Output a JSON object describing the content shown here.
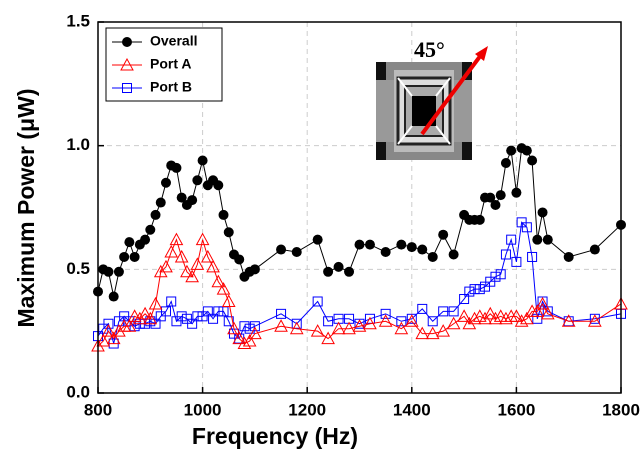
{
  "chart_data": {
    "type": "line",
    "xlabel": "Frequency (Hz)",
    "ylabel": "Maximum Power (μW)",
    "annotation": "45°",
    "x": [
      800,
      810,
      820,
      830,
      840,
      850,
      860,
      870,
      880,
      890,
      900,
      910,
      920,
      930,
      940,
      950,
      960,
      970,
      980,
      990,
      1000,
      1010,
      1020,
      1030,
      1040,
      1050,
      1060,
      1070,
      1080,
      1090,
      1100,
      1150,
      1180,
      1220,
      1240,
      1260,
      1280,
      1300,
      1320,
      1350,
      1380,
      1400,
      1420,
      1440,
      1460,
      1480,
      1500,
      1510,
      1520,
      1530,
      1540,
      1550,
      1560,
      1570,
      1580,
      1590,
      1600,
      1610,
      1620,
      1630,
      1640,
      1650,
      1660,
      1700,
      1750,
      1800
    ],
    "series": [
      {
        "name": "Overall",
        "color": "#000000",
        "marker": "circle",
        "values": [
          0.41,
          0.5,
          0.49,
          0.39,
          0.49,
          0.55,
          0.61,
          0.55,
          0.6,
          0.62,
          0.66,
          0.72,
          0.77,
          0.85,
          0.92,
          0.91,
          0.79,
          0.76,
          0.78,
          0.86,
          0.94,
          0.84,
          0.86,
          0.84,
          0.72,
          0.65,
          0.56,
          0.54,
          0.47,
          0.49,
          0.5,
          0.58,
          0.57,
          0.62,
          0.49,
          0.51,
          0.49,
          0.6,
          0.6,
          0.57,
          0.6,
          0.59,
          0.58,
          0.55,
          0.64,
          0.56,
          0.72,
          0.7,
          0.7,
          0.7,
          0.79,
          0.79,
          0.76,
          0.8,
          0.93,
          0.98,
          0.81,
          0.99,
          0.98,
          0.94,
          0.62,
          0.73,
          0.62,
          0.55,
          0.58,
          0.68
        ]
      },
      {
        "name": "Port A",
        "color": "#ff0000",
        "marker": "triangle",
        "values": [
          0.19,
          0.21,
          0.25,
          0.22,
          0.25,
          0.27,
          0.27,
          0.31,
          0.3,
          0.32,
          0.3,
          0.36,
          0.49,
          0.51,
          0.57,
          0.62,
          0.55,
          0.49,
          0.47,
          0.52,
          0.62,
          0.55,
          0.51,
          0.45,
          0.42,
          0.37,
          0.26,
          0.22,
          0.2,
          0.21,
          0.24,
          0.27,
          0.26,
          0.25,
          0.22,
          0.26,
          0.26,
          0.27,
          0.28,
          0.29,
          0.26,
          0.29,
          0.24,
          0.24,
          0.25,
          0.28,
          0.31,
          0.28,
          0.3,
          0.31,
          0.3,
          0.32,
          0.3,
          0.31,
          0.3,
          0.31,
          0.31,
          0.29,
          0.3,
          0.33,
          0.33,
          0.36,
          0.32,
          0.29,
          0.29,
          0.36
        ]
      },
      {
        "name": "Port B",
        "color": "#0000ff",
        "marker": "square",
        "values": [
          0.23,
          0.26,
          0.28,
          0.2,
          0.29,
          0.31,
          0.29,
          0.27,
          0.28,
          0.28,
          0.29,
          0.28,
          0.31,
          0.33,
          0.37,
          0.29,
          0.31,
          0.3,
          0.28,
          0.31,
          0.31,
          0.33,
          0.3,
          0.33,
          0.33,
          0.29,
          0.24,
          0.22,
          0.27,
          0.26,
          0.27,
          0.32,
          0.28,
          0.37,
          0.29,
          0.3,
          0.3,
          0.28,
          0.3,
          0.32,
          0.29,
          0.3,
          0.34,
          0.29,
          0.33,
          0.33,
          0.38,
          0.41,
          0.42,
          0.42,
          0.43,
          0.45,
          0.47,
          0.48,
          0.56,
          0.62,
          0.53,
          0.69,
          0.67,
          0.55,
          0.3,
          0.37,
          0.33,
          0.29,
          0.3,
          0.32
        ]
      }
    ],
    "xlim": [
      800,
      1800
    ],
    "xticks": [
      800,
      1000,
      1200,
      1400,
      1600,
      1800
    ],
    "ylim": [
      0,
      1.5
    ],
    "yticks": [
      {
        "value": 0,
        "label": "0.0"
      },
      {
        "value": 0.5,
        "label": "0.5"
      },
      {
        "value": 1.0,
        "label": "1.0"
      },
      {
        "value": 1.5,
        "label": "1.5"
      }
    ],
    "grid": true,
    "legend": "upper left"
  }
}
